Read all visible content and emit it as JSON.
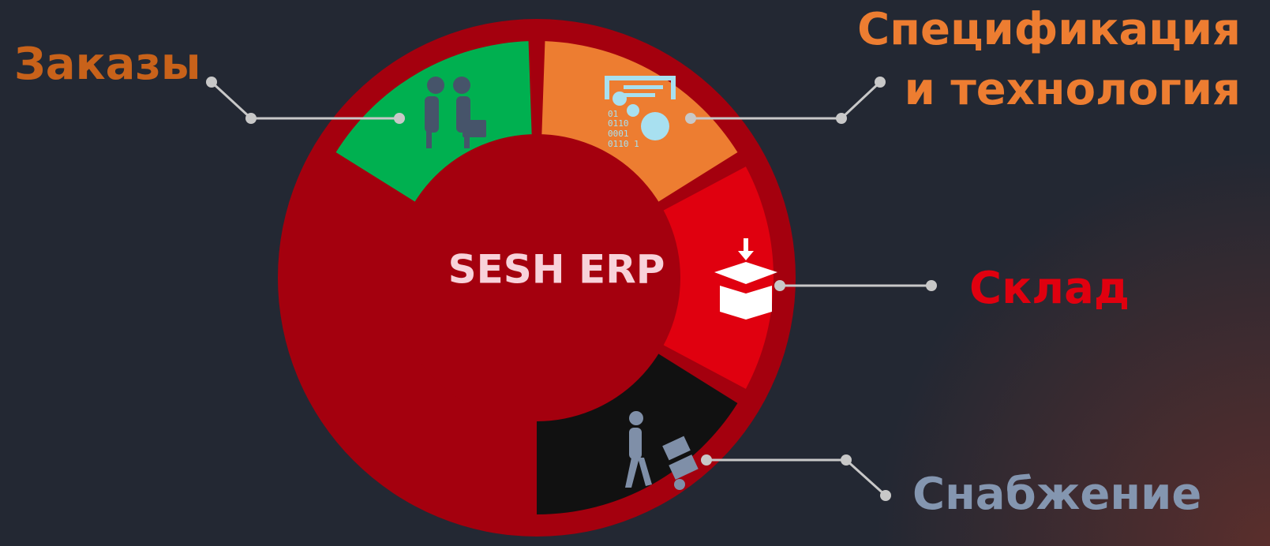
{
  "center": "SESH ERP",
  "nodes": [
    {
      "label": "Заказы"
    },
    {
      "label_lines": [
        "Спецификация",
        "и технология"
      ]
    },
    {
      "label": "Склад"
    },
    {
      "label": "Снабжение"
    }
  ]
}
